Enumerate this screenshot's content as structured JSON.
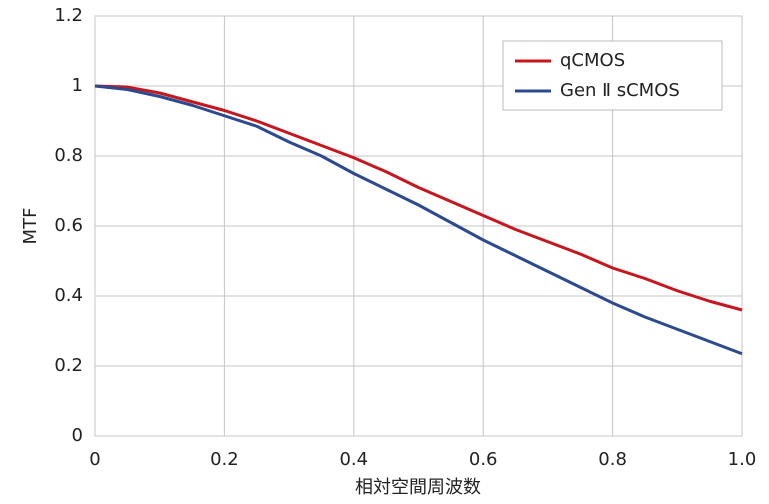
{
  "chart_data": {
    "type": "line",
    "x_label": "相対空間周波数",
    "y_label": "MTF",
    "x": [
      0,
      0.05,
      0.1,
      0.15,
      0.2,
      0.25,
      0.3,
      0.35,
      0.4,
      0.45,
      0.5,
      0.55,
      0.6,
      0.65,
      0.7,
      0.75,
      0.8,
      0.85,
      0.9,
      0.95,
      1.0
    ],
    "series": [
      {
        "name": "qCMOS",
        "color": "#c8161e",
        "values": [
          1,
          0.997,
          0.98,
          0.955,
          0.93,
          0.9,
          0.865,
          0.83,
          0.795,
          0.755,
          0.71,
          0.67,
          0.63,
          0.59,
          0.555,
          0.52,
          0.48,
          0.45,
          0.415,
          0.385,
          0.36
        ]
      },
      {
        "name": "Gen Ⅱ sCMOS",
        "color": "#2b4a8f",
        "values": [
          1,
          0.99,
          0.97,
          0.945,
          0.915,
          0.885,
          0.84,
          0.8,
          0.75,
          0.705,
          0.66,
          0.61,
          0.56,
          0.515,
          0.47,
          0.425,
          0.38,
          0.34,
          0.305,
          0.27,
          0.235
        ]
      }
    ],
    "xlim": [
      0,
      1
    ],
    "xticks": [
      0,
      0.2,
      0.4,
      0.6,
      0.8,
      {
        "value": 1,
        "label": "1.0"
      }
    ],
    "ylim": [
      0,
      1.2
    ],
    "yticks": [
      0,
      0.2,
      0.4,
      0.6,
      0.8,
      1,
      1.2
    ],
    "grid": true,
    "legend": "upper right"
  }
}
